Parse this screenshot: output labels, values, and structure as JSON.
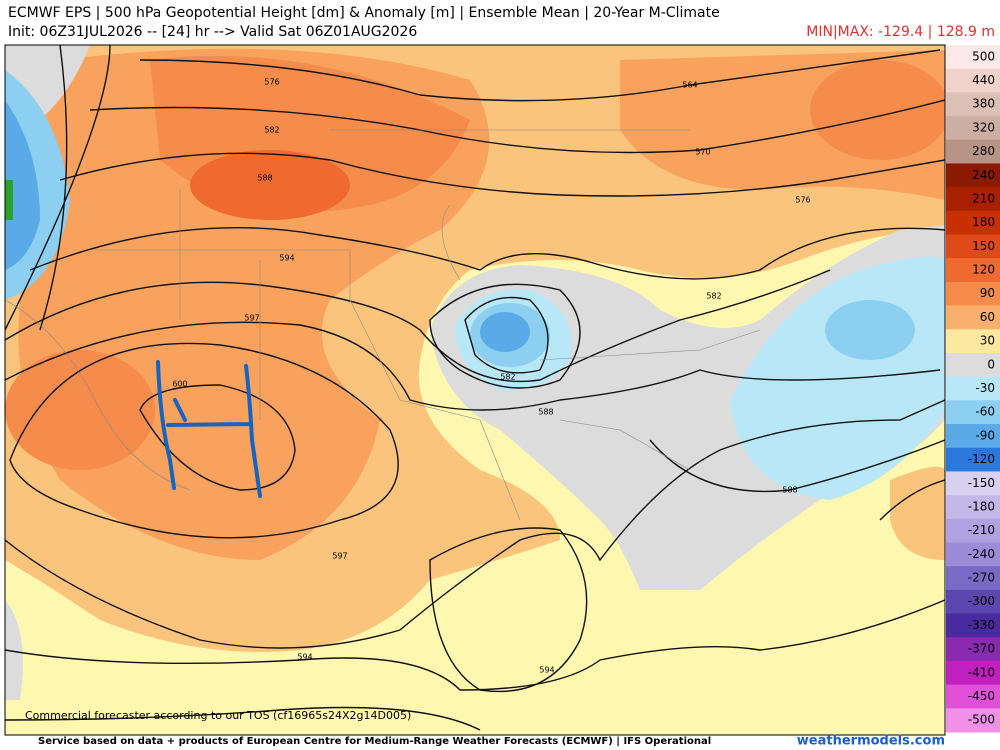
{
  "header": {
    "title": "ECMWF EPS | 500 hPa Geopotential Height [dm] & Anomaly [m] | Ensemble Mean | 20-Year M-Climate",
    "subtitle": "Init: 06Z31JUL2026 -- [24] hr --> Valid Sat 06Z01AUG2026",
    "minmax": "MIN|MAX: -129.4 | 128.9 m"
  },
  "colorbar": {
    "labels": [
      500,
      440,
      380,
      320,
      280,
      240,
      210,
      180,
      150,
      120,
      90,
      60,
      30,
      0,
      -30,
      -60,
      -90,
      -120,
      -150,
      -180,
      -210,
      -240,
      -270,
      -300,
      -330,
      -370,
      -410,
      -450,
      -500
    ],
    "colors": [
      "#fde8e8",
      "#f3d2cc",
      "#dcbfb5",
      "#cdaea2",
      "#b89487",
      "#8b1a00",
      "#a82000",
      "#c83000",
      "#e04a1a",
      "#f06a30",
      "#f58c4c",
      "#f9b06c",
      "#fde8a0",
      "#dcdcdc",
      "#b8e8f8",
      "#8ccff0",
      "#5aaae8",
      "#2a78dc",
      "#d8d0f0",
      "#c4b8ea",
      "#b0a2e2",
      "#9c8cd8",
      "#7a6ac8",
      "#5a48b0",
      "#4a2aa0",
      "#8a2ab0",
      "#c020c0",
      "#e050d8",
      "#f090e8"
    ]
  },
  "contour_labels": [
    "576",
    "582",
    "588",
    "594",
    "597",
    "600",
    "564",
    "570",
    "576",
    "582",
    "582",
    "588",
    "588",
    "597",
    "594",
    "594"
  ],
  "watermark": "Commercial forecaster according to our TOS (cf16965s24X2g14D005)",
  "footer": {
    "credit": "Service based on data + products of European Centre for Medium-Range Weather Forecasts (ECMWF) | IFS Operational",
    "site": "weathermodels.com"
  }
}
